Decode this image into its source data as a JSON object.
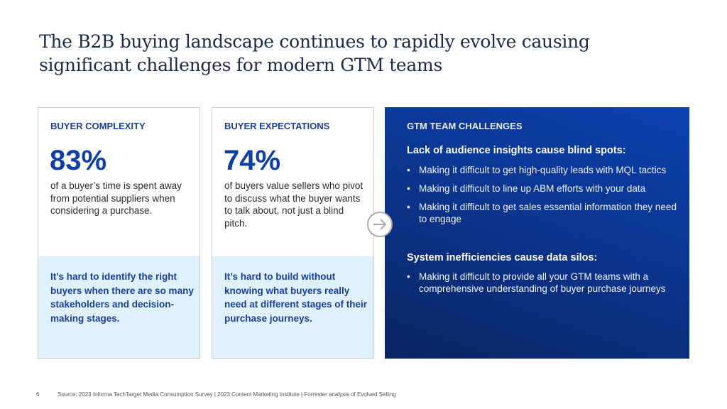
{
  "title": "The B2B buying landscape continues to rapidly evolve causing significant challenges for modern GTM teams",
  "cards": [
    {
      "heading": "BUYER COMPLEXITY",
      "stat": "83%",
      "description": "of a buyer’s time is spent away from potential suppliers when considering a purchase.",
      "takeaway": "It’s hard to identify the right buyers when there are so many stakeholders and decision-making stages."
    },
    {
      "heading": "BUYER EXPECTATIONS",
      "stat": "74%",
      "description": "of buyers value sellers who pivot to discuss what the buyer wants to talk about, not just a blind pitch.",
      "takeaway": "It’s hard to build without knowing what buyers really need at different stages of their purchase journeys."
    }
  ],
  "arrow_icon": "arrow-right-circle-icon",
  "challenges": {
    "heading": "GTM TEAM CHALLENGES",
    "bullet": "•",
    "groups": [
      {
        "title": "Lack of audience insights cause blind spots:",
        "items": [
          "Making it difficult to get high-quality leads with MQL tactics",
          "Making it difficult to line up ABM efforts with your data",
          "Making it difficult to get sales essential information they need to engage"
        ]
      },
      {
        "title": "System inefficiencies cause data silos:",
        "items": [
          "Making it difficult to provide all your GTM teams with a comprehensive understanding of buyer purchase journeys"
        ]
      }
    ]
  },
  "footer": {
    "page_number": "6",
    "source": "Source: 2023 Informa TechTarget Media Consumption Survey | 2023 Content Marketing Institute | Forrester analysis of Evolved Selling"
  },
  "colors": {
    "accent": "#0d3ea8",
    "panel": "#0b358f",
    "light": "#def1fc",
    "title": "#1b2a4a"
  }
}
